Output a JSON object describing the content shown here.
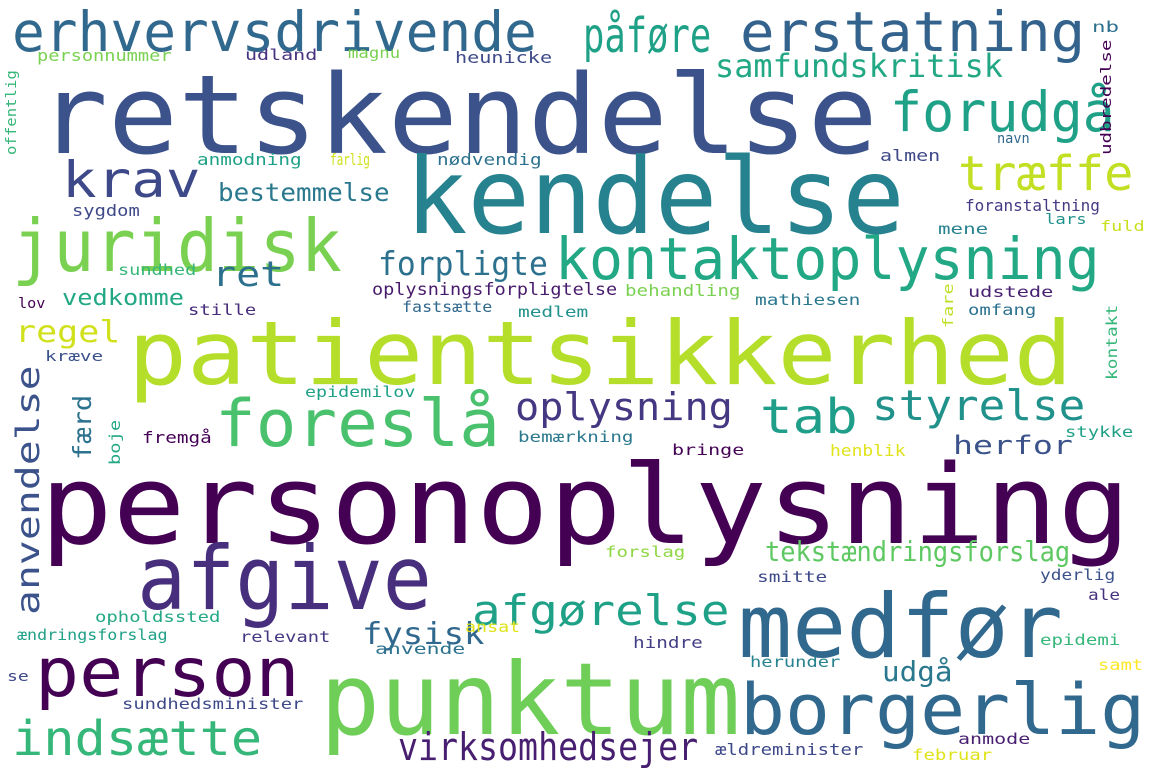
{
  "word_cloud": {
    "words": [
      {
        "text": "personoplysning",
        "color": "#440154"
      },
      {
        "text": "patientsikkerhed",
        "color": "#b5de2b"
      },
      {
        "text": "retskendelse",
        "color": "#3b528b"
      },
      {
        "text": "kendelse",
        "color": "#26828e"
      },
      {
        "text": "punktum",
        "color": "#6ece58"
      },
      {
        "text": "medfør",
        "color": "#31688e"
      },
      {
        "text": "afgive",
        "color": "#472f7d"
      },
      {
        "text": "erhvervsdrivende",
        "color": "#31688e"
      },
      {
        "text": "erstatning",
        "color": "#33638d"
      },
      {
        "text": "juridisk",
        "color": "#7ad151"
      },
      {
        "text": "foreslå",
        "color": "#4ac16d"
      },
      {
        "text": "person",
        "color": "#440154"
      },
      {
        "text": "borgerlig",
        "color": "#31688e"
      },
      {
        "text": "indsætte",
        "color": "#35b779"
      },
      {
        "text": "kontaktoplysning",
        "color": "#22a884"
      },
      {
        "text": "krav",
        "color": "#3e4989"
      },
      {
        "text": "forudgå",
        "color": "#1fa187"
      },
      {
        "text": "træffe",
        "color": "#c2df23"
      },
      {
        "text": "tab",
        "color": "#1f9e89"
      },
      {
        "text": "styrelse",
        "color": "#21918c"
      },
      {
        "text": "afgørelse",
        "color": "#1fa187"
      },
      {
        "text": "anvendelse",
        "color": "#3b528b"
      },
      {
        "text": "virksomhedsejer",
        "color": "#481f70"
      },
      {
        "text": "oplysning",
        "color": "#453781"
      },
      {
        "text": "påføre",
        "color": "#1fa187"
      },
      {
        "text": "ret",
        "color": "#2d708e"
      },
      {
        "text": "forpligte",
        "color": "#2c728e"
      },
      {
        "text": "samfundskritisk",
        "color": "#22a884"
      },
      {
        "text": "tekstændringsforslag",
        "color": "#5ec962"
      },
      {
        "text": "fysisk",
        "color": "#31688e"
      },
      {
        "text": "bestemmelse",
        "color": "#2a788e"
      },
      {
        "text": "herfor",
        "color": "#3b528b"
      },
      {
        "text": "regel",
        "color": "#d0e11c"
      },
      {
        "text": "vedkomme",
        "color": "#22a884"
      },
      {
        "text": "færd",
        "color": "#2c728e"
      },
      {
        "text": "udgå",
        "color": "#2a788e"
      },
      {
        "text": "personnummer",
        "color": "#7ad151"
      },
      {
        "text": "udland",
        "color": "#46327e"
      },
      {
        "text": "magnu",
        "color": "#7ad151"
      },
      {
        "text": "heunicke",
        "color": "#3e4989"
      },
      {
        "text": "nb",
        "color": "#2d708e"
      },
      {
        "text": "offentlig",
        "color": "#35b779"
      },
      {
        "text": "udbredelse",
        "color": "#440154"
      },
      {
        "text": "navn",
        "color": "#31688e"
      },
      {
        "text": "anmodning",
        "color": "#1fa187"
      },
      {
        "text": "farlig",
        "color": "#d0e11c"
      },
      {
        "text": "nødvendig",
        "color": "#2c728e"
      },
      {
        "text": "almen",
        "color": "#3e4989"
      },
      {
        "text": "sygdom",
        "color": "#3e4989"
      },
      {
        "text": "foranstaltning",
        "color": "#443983"
      },
      {
        "text": "mene",
        "color": "#26828e"
      },
      {
        "text": "lars",
        "color": "#21918c"
      },
      {
        "text": "fuld",
        "color": "#c8e020"
      },
      {
        "text": "sundhed",
        "color": "#35b779"
      },
      {
        "text": "lov",
        "color": "#440154"
      },
      {
        "text": "stille",
        "color": "#472d7b"
      },
      {
        "text": "oplysningsforpligtelse",
        "color": "#481a6c"
      },
      {
        "text": "fastsætte",
        "color": "#31688e"
      },
      {
        "text": "behandling",
        "color": "#7ad151"
      },
      {
        "text": "medlem",
        "color": "#21918c"
      },
      {
        "text": "mathiesen",
        "color": "#2a788e"
      },
      {
        "text": "udstede",
        "color": "#482173"
      },
      {
        "text": "omfang",
        "color": "#2c728e"
      },
      {
        "text": "fare",
        "color": "#bddf26"
      },
      {
        "text": "kontakt",
        "color": "#35b779"
      },
      {
        "text": "kræve",
        "color": "#3b528b"
      },
      {
        "text": "epidemilov",
        "color": "#1fa187"
      },
      {
        "text": "fremgå",
        "color": "#440154"
      },
      {
        "text": "boje",
        "color": "#22a884"
      },
      {
        "text": "bemærkning",
        "color": "#2a788e"
      },
      {
        "text": "bringe",
        "color": "#440154"
      },
      {
        "text": "henblik",
        "color": "#e0e318"
      },
      {
        "text": "stykke",
        "color": "#1fa187"
      },
      {
        "text": "forslag",
        "color": "#8fd744"
      },
      {
        "text": "smitte",
        "color": "#3e4989"
      },
      {
        "text": "yderlig",
        "color": "#3b528b"
      },
      {
        "text": "ale",
        "color": "#46337e"
      },
      {
        "text": "opholdssted",
        "color": "#22a884"
      },
      {
        "text": "ændringsforslag",
        "color": "#1fa187"
      },
      {
        "text": "relevant",
        "color": "#453781"
      },
      {
        "text": "ansat",
        "color": "#dfe318"
      },
      {
        "text": "anvende",
        "color": "#2c728e"
      },
      {
        "text": "hindre",
        "color": "#433e85"
      },
      {
        "text": "epidemi",
        "color": "#35b779"
      },
      {
        "text": "se",
        "color": "#3e4989"
      },
      {
        "text": "herunder",
        "color": "#26828e"
      },
      {
        "text": "samt",
        "color": "#fde725"
      },
      {
        "text": "sundhedsminister",
        "color": "#3e4989"
      },
      {
        "text": "ældreminister",
        "color": "#3e4989"
      },
      {
        "text": "anmode",
        "color": "#481f70"
      },
      {
        "text": "februar",
        "color": "#e0e318"
      }
    ]
  }
}
